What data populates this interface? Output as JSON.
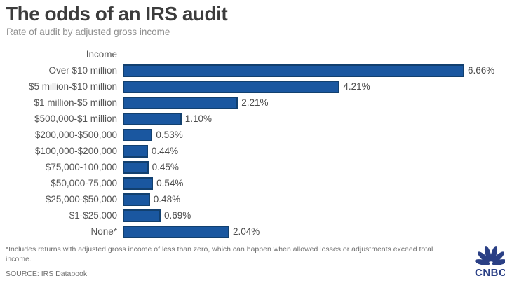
{
  "chart_data": {
    "type": "bar",
    "orientation": "horizontal",
    "title": "The odds of an IRS audit",
    "subtitle": "Rate of audit by adjusted gross income",
    "column_header": "Income",
    "categories": [
      "Over $10 million",
      "$5 million-$10 million",
      "$1 million-$5 million",
      "$500,000-$1 million",
      "$200,000-$500,000",
      "$100,000-$200,000",
      "$75,000-100,000",
      "$50,000-75,000",
      "$25,000-$50,000",
      "$1-$25,000",
      "None*"
    ],
    "values": [
      6.66,
      4.21,
      2.21,
      1.1,
      0.53,
      0.44,
      0.45,
      0.54,
      0.48,
      0.69,
      2.04
    ],
    "value_labels": [
      "6.66%",
      "4.21%",
      "2.21%",
      "1.10%",
      "0.53%",
      "0.44%",
      "0.45%",
      "0.54%",
      "0.48%",
      "0.69%",
      "2.04%"
    ],
    "xlim": [
      0,
      6.66
    ],
    "grid": false,
    "legend": false,
    "bar_color": "#1a57a0",
    "bar_border_color": "#12406f"
  },
  "footnote": "*Includes returns with adjusted gross income of less than zero, which can happen when allowed losses or adjustments exceed total income.",
  "source": "SOURCE: IRS Databook",
  "logo": {
    "name": "CNBC",
    "color": "#2a3f85"
  }
}
